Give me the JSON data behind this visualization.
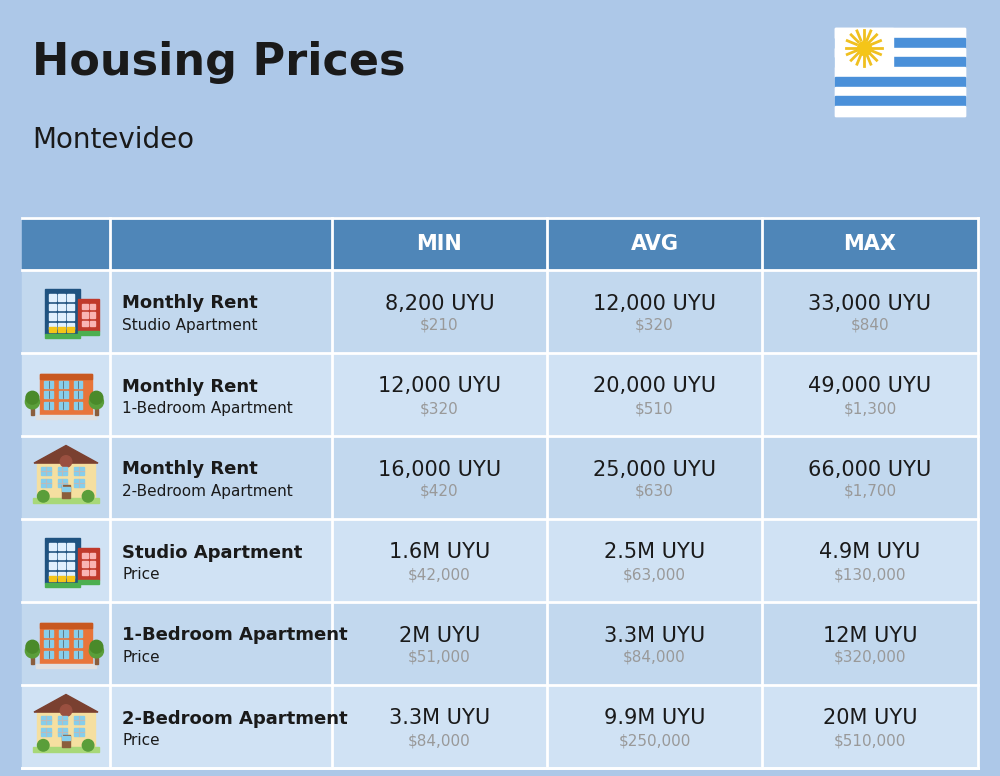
{
  "title": "Housing Prices",
  "subtitle": "Montevideo",
  "background_color": "#adc8e8",
  "header_bg_color": "#4f86b8",
  "header_text_color": "#ffffff",
  "row_bg_colors": [
    "#c2d8ee",
    "#d0e2f4",
    "#c2d8ee",
    "#d0e2f4",
    "#c2d8ee",
    "#d0e2f4"
  ],
  "columns": [
    "MIN",
    "AVG",
    "MAX"
  ],
  "rows": [
    {
      "icon": "office_blue",
      "label_bold": "Monthly Rent",
      "label_sub": "Studio Apartment",
      "min_uyu": "8,200 UYU",
      "min_usd": "$210",
      "avg_uyu": "12,000 UYU",
      "avg_usd": "$320",
      "max_uyu": "33,000 UYU",
      "max_usd": "$840"
    },
    {
      "icon": "apt_orange",
      "label_bold": "Monthly Rent",
      "label_sub": "1-Bedroom Apartment",
      "min_uyu": "12,000 UYU",
      "min_usd": "$320",
      "avg_uyu": "20,000 UYU",
      "avg_usd": "$510",
      "max_uyu": "49,000 UYU",
      "max_usd": "$1,300"
    },
    {
      "icon": "house_beige",
      "label_bold": "Monthly Rent",
      "label_sub": "2-Bedroom Apartment",
      "min_uyu": "16,000 UYU",
      "min_usd": "$420",
      "avg_uyu": "25,000 UYU",
      "avg_usd": "$630",
      "max_uyu": "66,000 UYU",
      "max_usd": "$1,700"
    },
    {
      "icon": "office_blue",
      "label_bold": "Studio Apartment",
      "label_sub": "Price",
      "min_uyu": "1.6M UYU",
      "min_usd": "$42,000",
      "avg_uyu": "2.5M UYU",
      "avg_usd": "$63,000",
      "max_uyu": "4.9M UYU",
      "max_usd": "$130,000"
    },
    {
      "icon": "apt_orange",
      "label_bold": "1-Bedroom Apartment",
      "label_sub": "Price",
      "min_uyu": "2M UYU",
      "min_usd": "$51,000",
      "avg_uyu": "3.3M UYU",
      "avg_usd": "$84,000",
      "max_uyu": "12M UYU",
      "max_usd": "$320,000"
    },
    {
      "icon": "house_beige",
      "label_bold": "2-Bedroom Apartment",
      "label_sub": "Price",
      "min_uyu": "3.3M UYU",
      "min_usd": "$84,000",
      "avg_uyu": "9.9M UYU",
      "avg_usd": "$250,000",
      "max_uyu": "20M UYU",
      "max_usd": "$510,000"
    }
  ],
  "title_fontsize": 32,
  "subtitle_fontsize": 20,
  "header_fontsize": 15,
  "label_bold_fontsize": 13,
  "label_sub_fontsize": 11,
  "value_uyu_fontsize": 15,
  "value_usd_fontsize": 11,
  "usd_color": "#999999",
  "text_color": "#1a1a1a",
  "divider_color": "#ffffff"
}
